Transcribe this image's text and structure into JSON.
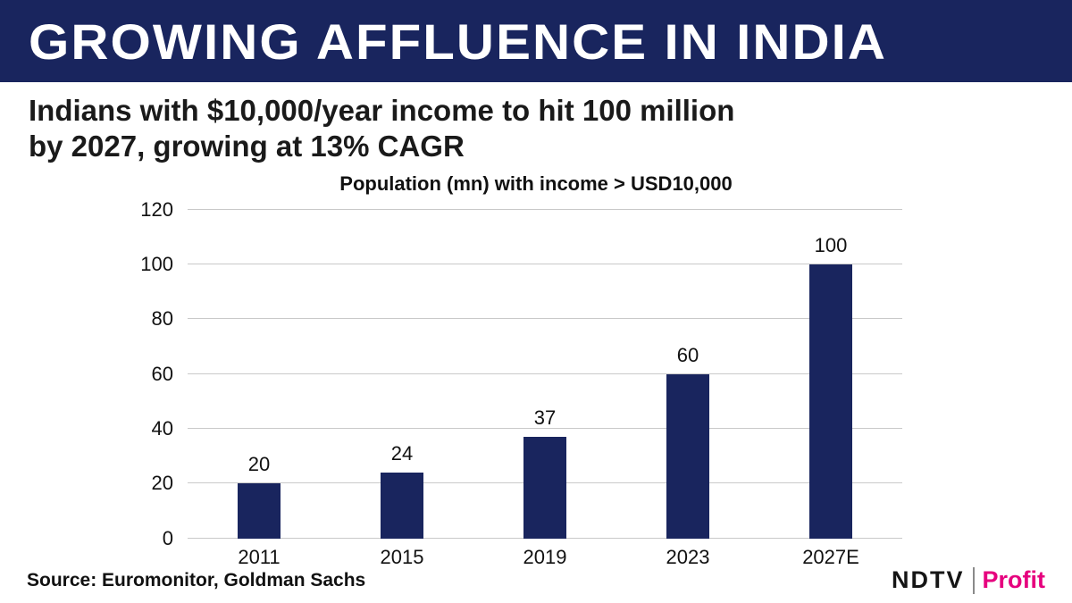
{
  "header": {
    "title": "GROWING AFFLUENCE IN INDIA",
    "subtitle_line1": "Indians with $10,000/year income to hit 100 million",
    "subtitle_line2": "by 2027, growing at 13% CAGR"
  },
  "chart_data": {
    "type": "bar",
    "title": "Population (mn) with income > USD10,000",
    "categories": [
      "2011",
      "2015",
      "2019",
      "2023",
      "2027E"
    ],
    "values": [
      20,
      24,
      37,
      60,
      100
    ],
    "xlabel": "",
    "ylabel": "",
    "ylim": [
      0,
      120
    ],
    "yticks": [
      0,
      20,
      40,
      60,
      80,
      100,
      120
    ],
    "grid": true,
    "legend": "none",
    "bar_color": "#19255e"
  },
  "footer": {
    "source": "Source: Euromonitor, Goldman Sachs",
    "logo_ndtv": "NDTV",
    "logo_profit": "Profit"
  },
  "colors": {
    "banner_bg": "#19255e",
    "banner_text": "#ffffff",
    "bar": "#19255e",
    "gridline": "#c9c9c9",
    "profit_accent": "#e6007e"
  }
}
